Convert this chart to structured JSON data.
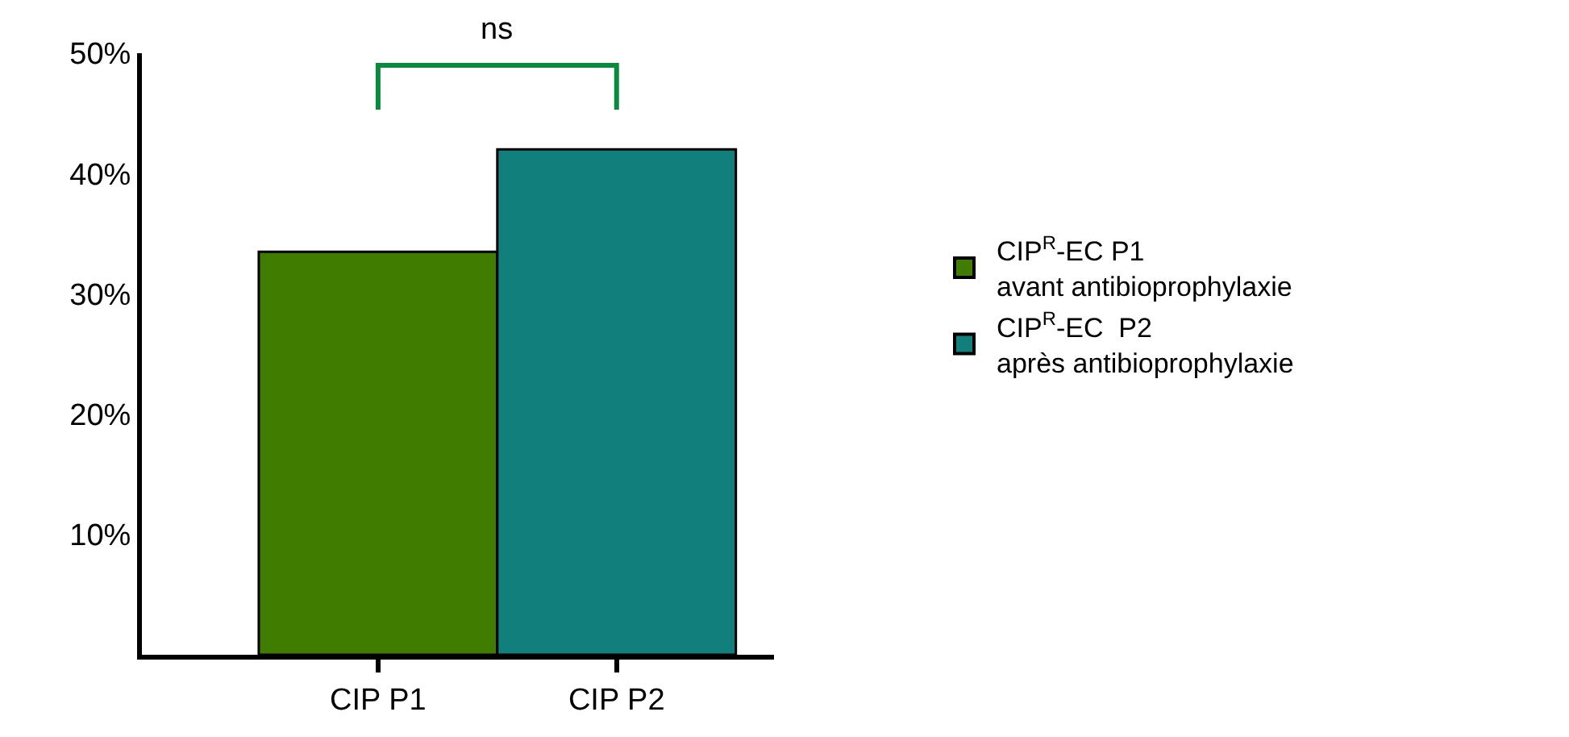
{
  "chart_data": {
    "type": "bar",
    "categories": [
      "CIP P1",
      "CIP P2"
    ],
    "series": [
      {
        "name": "CIP$^{R}$-EC P1\navant antibioprophylaxie",
        "color": "#3f7c00",
        "values": [
          33.5,
          null
        ]
      },
      {
        "name": "CIP$^{R}$-EC  P2\naprès antibioprophylaxie",
        "color": "#11807c",
        "values": [
          null,
          42
        ]
      }
    ],
    "ylim": [
      0,
      50
    ],
    "yticks": [
      {
        "value": 10,
        "label": "10%"
      },
      {
        "value": 20,
        "label": "20%"
      },
      {
        "value": 30,
        "label": "30%"
      },
      {
        "value": 40,
        "label": "40%"
      },
      {
        "value": 50,
        "label": "50%"
      }
    ],
    "annotations": [
      "ns"
    ],
    "legend": "right"
  }
}
